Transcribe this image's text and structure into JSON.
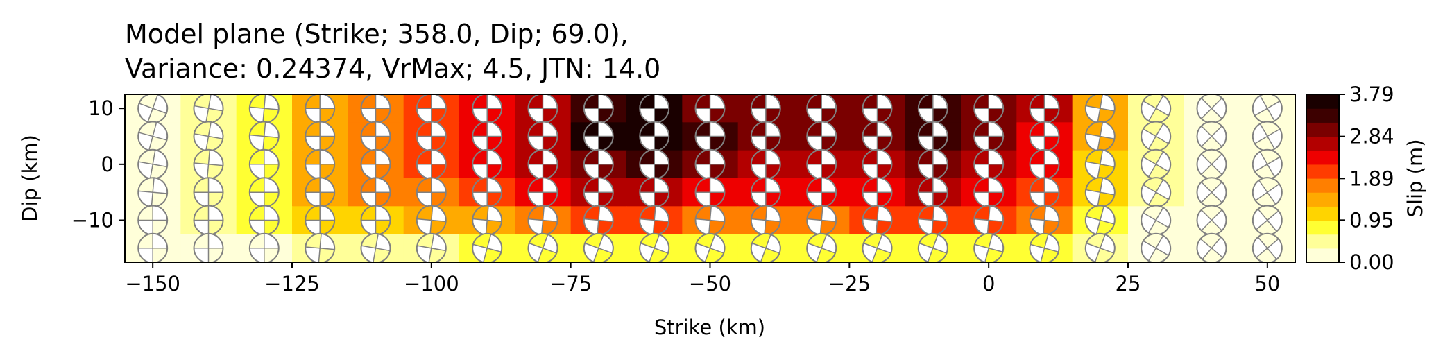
{
  "chart_data": {
    "type": "heatmap",
    "title": "Model plane (Strike; 358.0, Dip; 69.0),",
    "subtitle": "Variance: 0.24374, VrMax; 4.5, JTN: 14.0",
    "xlabel": "Strike (km)",
    "ylabel": "Dip (km)",
    "xlim": [
      -155,
      55
    ],
    "ylim": [
      -17.5,
      12.5
    ],
    "xticks": [
      -150,
      -125,
      -100,
      -75,
      -50,
      -25,
      0,
      25,
      50
    ],
    "xtick_labels": [
      "−150",
      "−125",
      "−100",
      "−75",
      "−50",
      "−25",
      "0",
      "25",
      "50"
    ],
    "yticks": [
      -10,
      0,
      10
    ],
    "ytick_labels": [
      "−10",
      "0",
      "10"
    ],
    "grid": false,
    "colormap": "hot_r",
    "colorbar": {
      "label": "Slip (m)",
      "min": 0.0,
      "max": 3.79,
      "ticks": [
        0.0,
        0.95,
        1.89,
        2.84,
        3.79
      ],
      "tick_labels": [
        "0.00",
        "0.95",
        "1.89",
        "2.84",
        "3.79"
      ],
      "colors": [
        "#ffffd9",
        "#ffff99",
        "#ffff33",
        "#ffd400",
        "#ffaa00",
        "#ff7f00",
        "#ff3c00",
        "#ee0000",
        "#b30000",
        "#7a0000",
        "#3d0000",
        "#1a0000"
      ]
    },
    "x": [
      -150,
      -140,
      -130,
      -120,
      -110,
      -100,
      -90,
      -80,
      -70,
      -60,
      -50,
      -40,
      -30,
      -20,
      -10,
      0,
      10,
      20,
      30,
      40,
      50
    ],
    "y": [
      10,
      5,
      0,
      -5,
      -10,
      -15
    ],
    "slip": [
      [
        0.2,
        0.4,
        0.8,
        1.3,
        1.7,
        2.0,
        2.3,
        2.8,
        3.4,
        3.6,
        3.1,
        2.9,
        2.9,
        3.0,
        3.2,
        3.1,
        2.6,
        1.5,
        0.5,
        0.3,
        0.2
      ],
      [
        0.2,
        0.5,
        0.9,
        1.4,
        1.8,
        2.1,
        2.4,
        2.8,
        3.5,
        3.7,
        3.2,
        2.9,
        2.9,
        3.0,
        3.2,
        3.1,
        2.5,
        1.3,
        0.4,
        0.3,
        0.2
      ],
      [
        0.2,
        0.5,
        0.9,
        1.4,
        1.7,
        2.0,
        2.3,
        2.6,
        3.1,
        3.2,
        2.9,
        2.7,
        2.7,
        2.8,
        2.9,
        2.8,
        2.3,
        1.2,
        0.4,
        0.3,
        0.2
      ],
      [
        0.2,
        0.5,
        0.9,
        1.3,
        1.6,
        1.8,
        2.0,
        2.3,
        2.6,
        2.7,
        2.5,
        2.4,
        2.4,
        2.5,
        2.6,
        2.5,
        2.0,
        1.0,
        0.4,
        0.3,
        0.2
      ],
      [
        0.1,
        0.4,
        0.7,
        1.0,
        1.2,
        1.4,
        1.5,
        1.7,
        1.9,
        1.9,
        1.8,
        1.8,
        1.8,
        1.9,
        2.0,
        1.9,
        1.6,
        0.8,
        0.3,
        0.2,
        0.2
      ],
      [
        0.1,
        0.2,
        0.3,
        0.5,
        0.6,
        0.6,
        0.7,
        0.7,
        0.8,
        0.8,
        0.8,
        0.8,
        0.8,
        0.8,
        0.8,
        0.8,
        0.7,
        0.4,
        0.2,
        0.1,
        0.1
      ]
    ],
    "mechanism_rotation_deg": [
      [
        20,
        10,
        5,
        0,
        0,
        0,
        0,
        0,
        0,
        0,
        0,
        0,
        0,
        0,
        0,
        0,
        0,
        10,
        30,
        45,
        60
      ],
      [
        15,
        10,
        5,
        0,
        0,
        0,
        0,
        0,
        0,
        0,
        0,
        0,
        0,
        0,
        0,
        0,
        0,
        10,
        30,
        45,
        60
      ],
      [
        10,
        5,
        0,
        0,
        0,
        0,
        0,
        0,
        0,
        0,
        0,
        0,
        0,
        0,
        0,
        0,
        0,
        10,
        30,
        45,
        60
      ],
      [
        5,
        0,
        0,
        0,
        0,
        0,
        0,
        0,
        0,
        0,
        0,
        0,
        0,
        0,
        0,
        0,
        0,
        10,
        30,
        45,
        55
      ],
      [
        0,
        0,
        0,
        0,
        0,
        5,
        5,
        5,
        5,
        5,
        5,
        5,
        5,
        5,
        5,
        5,
        5,
        15,
        30,
        45,
        50
      ],
      [
        0,
        0,
        0,
        5,
        10,
        10,
        15,
        20,
        20,
        20,
        20,
        20,
        20,
        20,
        20,
        15,
        15,
        20,
        30,
        40,
        50
      ]
    ]
  }
}
